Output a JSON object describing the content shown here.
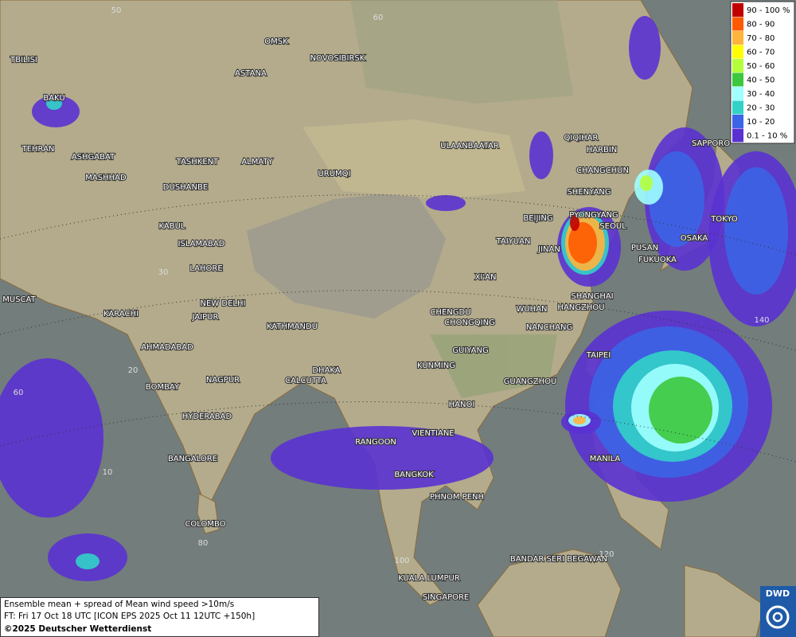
{
  "legend": [
    {
      "label": "90 - 100 %",
      "color": "#c00000"
    },
    {
      "label": "80 - 90",
      "color": "#ff5a00"
    },
    {
      "label": "70 - 80",
      "color": "#ffb43c"
    },
    {
      "label": "60 - 70",
      "color": "#ffff00"
    },
    {
      "label": "50 - 60",
      "color": "#b4ff3c"
    },
    {
      "label": "40 - 50",
      "color": "#3cc83c"
    },
    {
      "label": "30 - 40",
      "color": "#a0ffff"
    },
    {
      "label": "20 - 30",
      "color": "#32d2c8"
    },
    {
      "label": "10 - 20",
      "color": "#3c64e6"
    },
    {
      "label": "0.1 - 10 %",
      "color": "#5a32d2"
    }
  ],
  "cities": [
    "OMSK",
    "NOVOSIBIRSK",
    "ASTANA",
    "TBILISI",
    "BAKU",
    "TEHRAN",
    "ASHGABAT",
    "MASHHAD",
    "TASHKENT",
    "ALMATY",
    "DUSHANBE",
    "URUMQI",
    "ULAANBAATAR",
    "QIQIHAR",
    "HARBIN",
    "CHANGCHUN",
    "SHENYANG",
    "BEIJING",
    "PYONGYANG",
    "SEOUL",
    "SAPPORO",
    "TOKYO",
    "OSAKA",
    "PUSAN",
    "FUKUOKA",
    "TAIYUAN",
    "JINAN",
    "XI'AN",
    "SHANGHAI",
    "HANGZHOU",
    "WUHAN",
    "CHENGDU",
    "CHONGQING",
    "NANCHANG",
    "GUIYANG",
    "TAIPEI",
    "KUNMING",
    "GUANGZHOU",
    "HANOI",
    "VIENTIANE",
    "RANGOON",
    "BANGKOK",
    "MANILA",
    "PHNOM PENH",
    "KUALA LUMPUR",
    "SINGAPORE",
    "BANDAR SERI BEGAWAN",
    "KABUL",
    "ISLAMABAD",
    "LAHORE",
    "NEW DELHI",
    "JAIPUR",
    "KATHMANDU",
    "MUSCAT",
    "KARACHI",
    "AHMADABAD",
    "DHAKA",
    "CALCUTTA",
    "NAGPUR",
    "BOMBAY",
    "HYDERABAD",
    "BANGALORE",
    "COLOMBO"
  ],
  "grid_labels": [
    "50",
    "60",
    "30",
    "20",
    "10",
    "60",
    "80",
    "100",
    "120",
    "140"
  ],
  "info": {
    "line1": "Ensemble mean + spread of Mean wind speed >10m/s",
    "line2": "FT: Fri 17 Oct 18 UTC [ICON EPS 2025 Oct 11 12UTC +150h]",
    "copyright": "©2025 Deutscher Wetterdienst"
  },
  "logo": "DWD"
}
